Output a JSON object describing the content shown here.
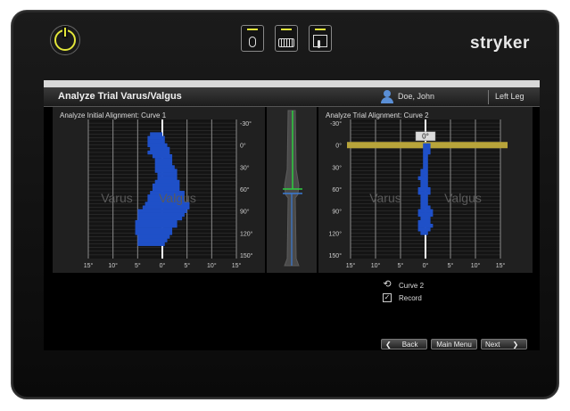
{
  "brand": "stryker",
  "top_icons": [
    "mouse-icon",
    "keyboard-icon",
    "touchscreen-icon"
  ],
  "header": {
    "title": "Analyze Trial Varus/Valgus",
    "user": "Doe, John",
    "leg": "Left Leg"
  },
  "left_panel": {
    "title": "Analyze Initial Alignment: Curve 1",
    "watermark_left": "Varus",
    "watermark_right": "Valgus",
    "y_ticks": [
      "-30°",
      "0°",
      "30°",
      "60°",
      "90°",
      "120°",
      "150°"
    ],
    "x_ticks": [
      "15°",
      "10°",
      "5°",
      "0°",
      "5°",
      "10°",
      "15°"
    ],
    "chart_data": {
      "type": "bar",
      "flexion_deg": [
        -15,
        -10,
        -5,
        0,
        5,
        10,
        15,
        20,
        25,
        30,
        35,
        40,
        45,
        50,
        55,
        60,
        65,
        70,
        75,
        80,
        85,
        90,
        95,
        100,
        105,
        110,
        115,
        120,
        125,
        130,
        135
      ],
      "varus_extent_deg": [
        2.5,
        3,
        3,
        3,
        2.5,
        3,
        2,
        1.5,
        1.5,
        1.5,
        1.5,
        1,
        1,
        1.5,
        2,
        2,
        2.5,
        3,
        3,
        3.5,
        4,
        5,
        5,
        5,
        5.5,
        5.5,
        5.5,
        5.5,
        5,
        5,
        5
      ],
      "valgus_extent_deg": [
        0,
        0.5,
        0.5,
        1,
        1.5,
        1.5,
        2,
        2,
        2,
        2.5,
        3,
        3,
        3,
        3.5,
        3.5,
        3.5,
        4.5,
        4.5,
        4.5,
        5.5,
        5.5,
        5,
        4.5,
        4,
        3,
        3,
        2,
        2,
        1.5,
        1,
        0.5
      ],
      "xlim": [
        -15,
        15
      ],
      "ylim": [
        -35,
        155
      ]
    }
  },
  "right_panel": {
    "title": "Analyze Trial Alignment: Curve 2",
    "current_angle": "0°",
    "watermark_left": "Varus",
    "watermark_right": "Valgus",
    "y_ticks": [
      "-30°",
      "0°",
      "30°",
      "60°",
      "90°",
      "120°",
      "150°"
    ],
    "x_ticks": [
      "15°",
      "10°",
      "5°",
      "0°",
      "5°",
      "10°",
      "15°"
    ],
    "chart_data": {
      "type": "bar",
      "flexion_deg": [
        0,
        5,
        10,
        15,
        20,
        25,
        30,
        35,
        40,
        45,
        50,
        55,
        60,
        65,
        70,
        75,
        80,
        85,
        90,
        95,
        100,
        105,
        110,
        115,
        120
      ],
      "varus_extent_deg": [
        0.5,
        0.5,
        0.5,
        0.5,
        0.5,
        0.5,
        0.5,
        1,
        1,
        1.5,
        1,
        1,
        1.5,
        1.5,
        1,
        1,
        1,
        1,
        1.5,
        1.5,
        1,
        1.5,
        1.5,
        1.5,
        1
      ],
      "valgus_extent_deg": [
        1,
        1,
        1,
        0.5,
        0.5,
        0.5,
        0.5,
        0.5,
        0.5,
        0.5,
        0.5,
        0.5,
        1,
        1,
        0.5,
        0.5,
        0.5,
        1,
        1.5,
        1.5,
        1,
        1,
        1.5,
        1,
        0.5
      ],
      "xlim": [
        -15,
        15
      ],
      "ylim": [
        -35,
        155
      ],
      "current_flexion_deg": 0
    }
  },
  "controls": {
    "curve_label": "Curve 2",
    "record_label": "Record"
  },
  "nav": {
    "back": "Back",
    "main_menu": "Main Menu",
    "next": "Next"
  }
}
